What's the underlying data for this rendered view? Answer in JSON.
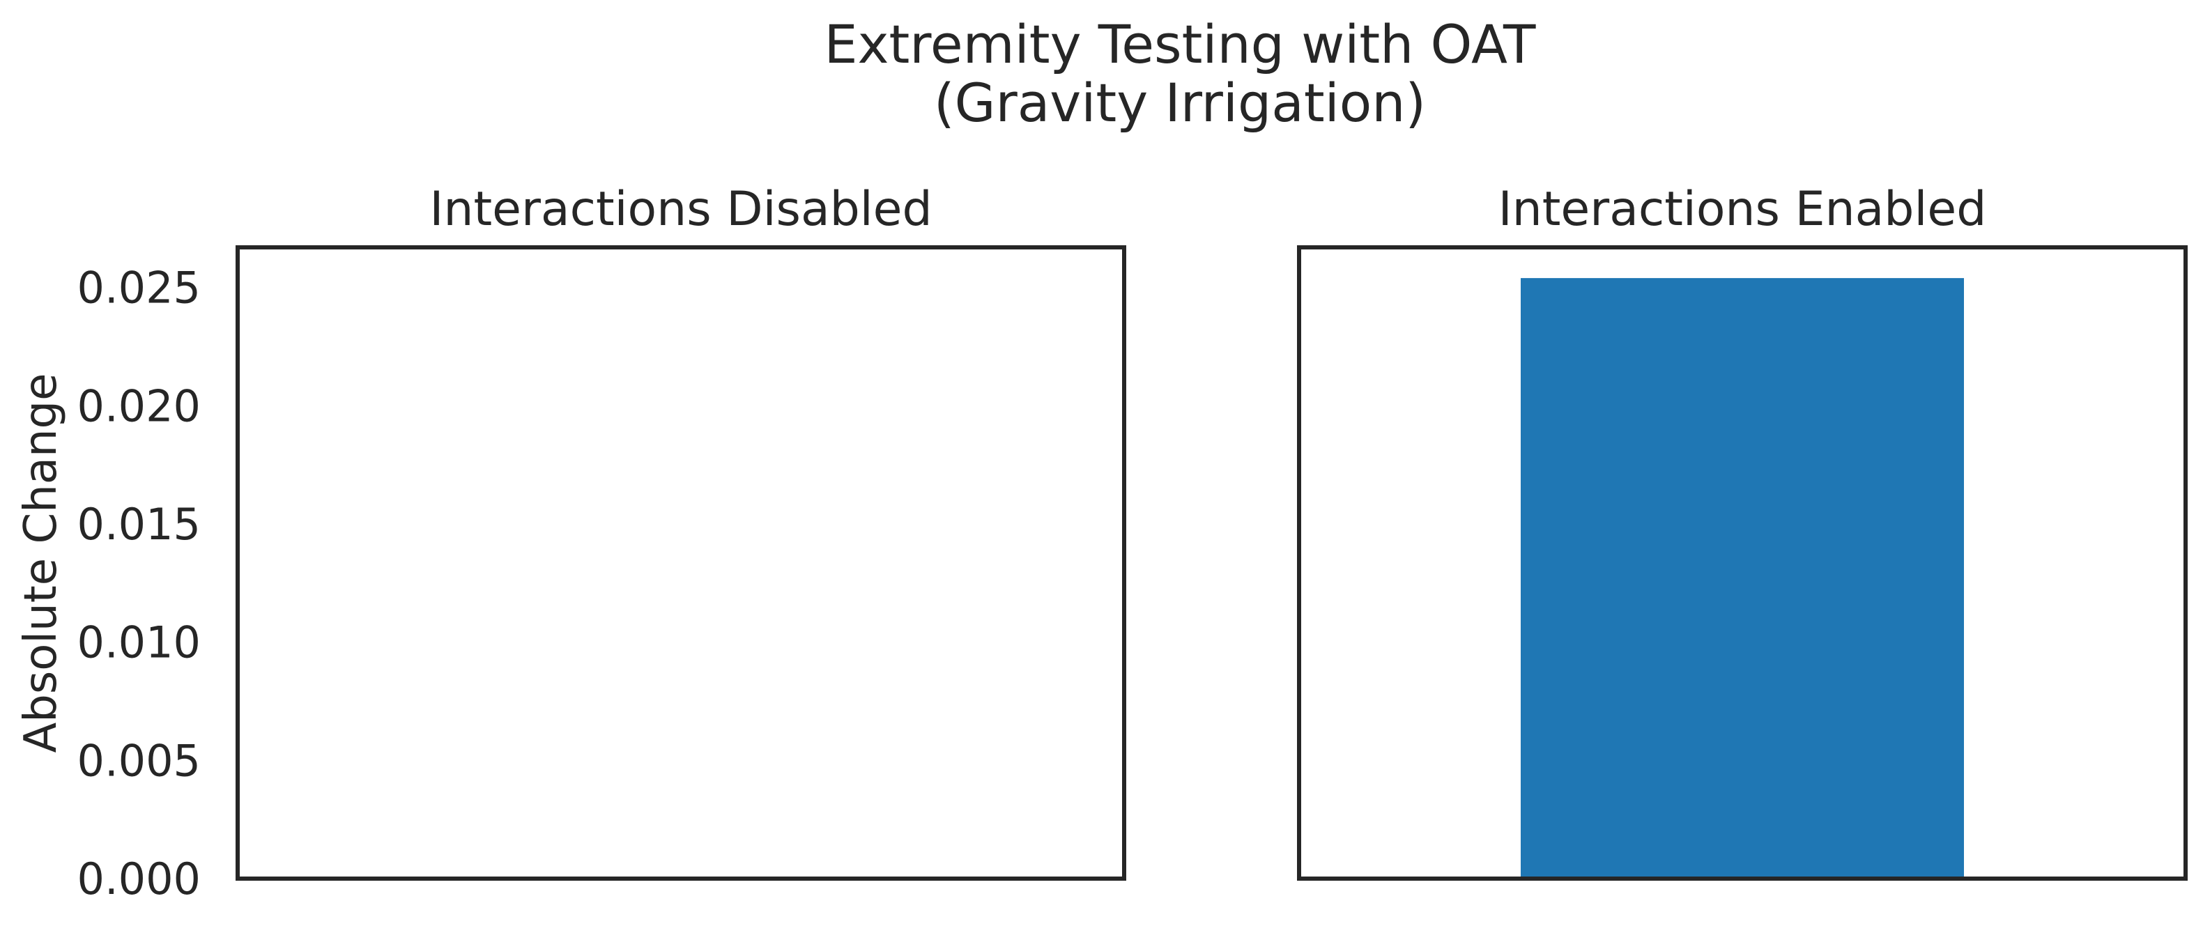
{
  "figure": {
    "title_line1": "Extremity Testing with OAT",
    "title_line2": "(Gravity Irrigation)"
  },
  "chart_data": [
    {
      "type": "bar",
      "title": "Interactions Disabled",
      "ylabel": "Absolute Change",
      "ylim": [
        0,
        0.0267
      ],
      "yticks": [
        0.0,
        0.005,
        0.01,
        0.015,
        0.02,
        0.025
      ],
      "ytick_labels": [
        "0.000",
        "0.005",
        "0.010",
        "0.015",
        "0.020",
        "0.025"
      ],
      "categories": [
        ""
      ],
      "values": [
        0.0
      ],
      "bar_color": "#1f77b4",
      "grid": false
    },
    {
      "type": "bar",
      "title": "Interactions Enabled",
      "ylim": [
        0,
        0.0267
      ],
      "categories": [
        ""
      ],
      "values": [
        0.0254
      ],
      "bar_color": "#1f77b4",
      "grid": false,
      "shares_y_with": 0
    }
  ]
}
